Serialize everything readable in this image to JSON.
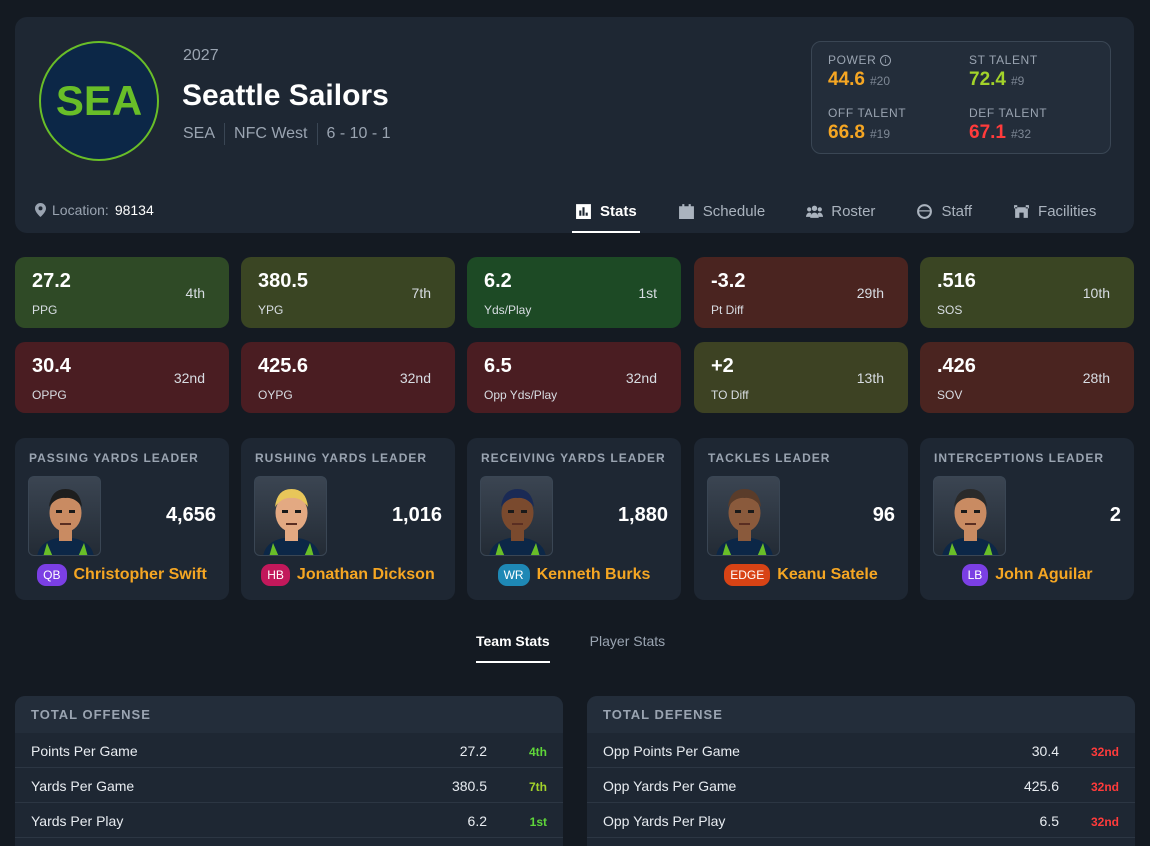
{
  "team": {
    "logo_text": "SEA",
    "season": "2027",
    "name": "Seattle Sailors",
    "abbr": "SEA",
    "division": "NFC West",
    "record": "6 - 10 - 1",
    "location_label": "Location:",
    "location_value": "98134"
  },
  "ratings": {
    "power": {
      "label": "POWER",
      "value": "44.6",
      "rank": "#20",
      "color": "#f5a623"
    },
    "st": {
      "label": "ST TALENT",
      "value": "72.4",
      "rank": "#9",
      "color": "#a3d32a"
    },
    "off": {
      "label": "OFF TALENT",
      "value": "66.8",
      "rank": "#19",
      "color": "#f5a623"
    },
    "def": {
      "label": "DEF TALENT",
      "value": "67.1",
      "rank": "#32",
      "color": "#ff3b3b"
    }
  },
  "tabs": [
    {
      "label": "Stats",
      "icon": "bar-chart-icon"
    },
    {
      "label": "Schedule",
      "icon": "calendar-icon"
    },
    {
      "label": "Roster",
      "icon": "users-icon"
    },
    {
      "label": "Staff",
      "icon": "coach-icon"
    },
    {
      "label": "Facilities",
      "icon": "stadium-icon"
    }
  ],
  "stat_cards": [
    {
      "value": "27.2",
      "label": "PPG",
      "rank": "4th",
      "color": "#2f4a26"
    },
    {
      "value": "380.5",
      "label": "YPG",
      "rank": "7th",
      "color": "#3a4523"
    },
    {
      "value": "6.2",
      "label": "Yds/Play",
      "rank": "1st",
      "color": "#1d4a25"
    },
    {
      "value": "-3.2",
      "label": "Pt Diff",
      "rank": "29th",
      "color": "#4a2420"
    },
    {
      "value": ".516",
      "label": "SOS",
      "rank": "10th",
      "color": "#3a4523"
    },
    {
      "value": "30.4",
      "label": "OPPG",
      "rank": "32nd",
      "color": "#4a1d22"
    },
    {
      "value": "425.6",
      "label": "OYPG",
      "rank": "32nd",
      "color": "#4a1d22"
    },
    {
      "value": "6.5",
      "label": "Opp Yds/Play",
      "rank": "32nd",
      "color": "#4a1d22"
    },
    {
      "value": "+2",
      "label": "TO Diff",
      "rank": "13th",
      "color": "#3d4223"
    },
    {
      "value": ".426",
      "label": "SOV",
      "rank": "28th",
      "color": "#4a2420"
    }
  ],
  "leaders": [
    {
      "title": "PASSING YARDS LEADER",
      "value": "4,656",
      "pos": "QB",
      "pos_color": "#7b3fe4",
      "name": "Christopher Swift",
      "skin": "#c98b62",
      "hair": "#1e1e1e"
    },
    {
      "title": "RUSHING YARDS LEADER",
      "value": "1,016",
      "pos": "HB",
      "pos_color": "#c2185b",
      "name": "Jonathan Dickson",
      "skin": "#e3a982",
      "hair": "#e8c65a"
    },
    {
      "title": "RECEIVING YARDS LEADER",
      "value": "1,880",
      "pos": "WR",
      "pos_color": "#1e88b5",
      "name": "Kenneth Burks",
      "skin": "#7a4a2e",
      "hair": "#1a2a55"
    },
    {
      "title": "TACKLES LEADER",
      "value": "96",
      "pos": "EDGE",
      "pos_color": "#d84315",
      "name": "Keanu Satele",
      "skin": "#8a5a3c",
      "hair": "#5a3c2a"
    },
    {
      "title": "INTERCEPTIONS LEADER",
      "value": "2",
      "pos": "LB",
      "pos_color": "#7b3fe4",
      "name": "John Aguilar",
      "skin": "#c98b62",
      "hair": "#2a2a2a"
    }
  ],
  "subtabs": [
    "Team Stats",
    "Player Stats"
  ],
  "offense": {
    "title": "TOTAL OFFENSE",
    "rows": [
      {
        "name": "Points Per Game",
        "value": "27.2",
        "rank": "4th",
        "color": "#5fd63a"
      },
      {
        "name": "Yards Per Game",
        "value": "380.5",
        "rank": "7th",
        "color": "#a3d32a"
      },
      {
        "name": "Yards Per Play",
        "value": "6.2",
        "rank": "1st",
        "color": "#5fd63a"
      }
    ]
  },
  "defense": {
    "title": "TOTAL DEFENSE",
    "rows": [
      {
        "name": "Opp Points Per Game",
        "value": "30.4",
        "rank": "32nd",
        "color": "#ff3b3b"
      },
      {
        "name": "Opp Yards Per Game",
        "value": "425.6",
        "rank": "32nd",
        "color": "#ff3b3b"
      },
      {
        "name": "Opp Yards Per Play",
        "value": "6.5",
        "rank": "32nd",
        "color": "#ff3b3b"
      }
    ]
  }
}
